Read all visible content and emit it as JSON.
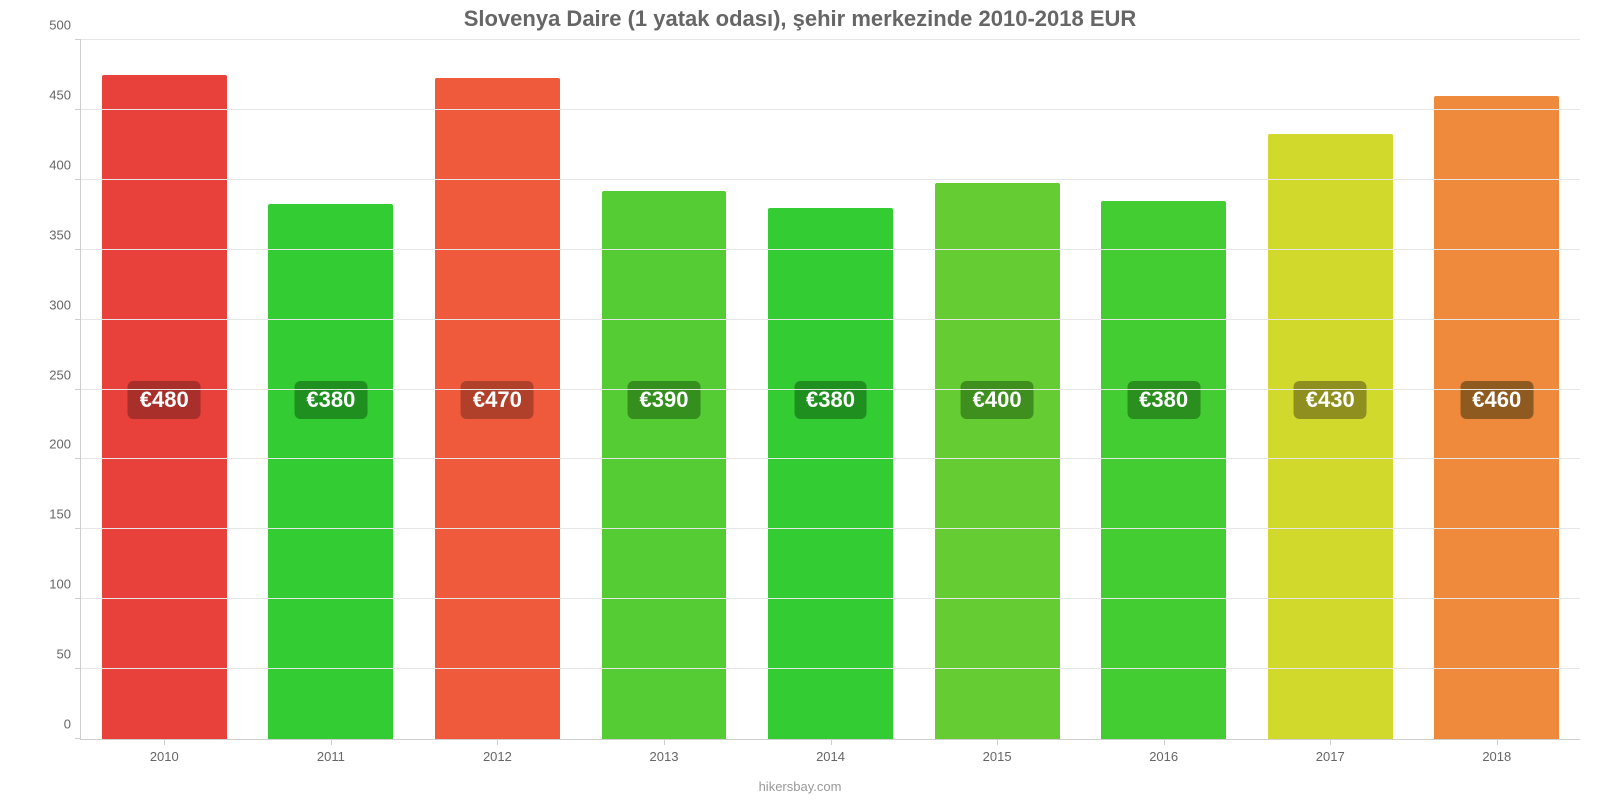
{
  "chart": {
    "type": "bar",
    "title": "Slovenya Daire (1 yatak odası), şehir merkezinde 2010-2018 EUR",
    "title_fontsize": 22,
    "title_color": "#666666",
    "credit": "hikersbay.com",
    "credit_fontsize": 13,
    "credit_color": "#999999",
    "background_color": "#ffffff",
    "grid_color": "#e6e6e6",
    "axis_line_color": "#cfcfcf",
    "tick_label_color": "#666666",
    "tick_fontsize": 13,
    "ylim_min": 0,
    "ylim_max": 500,
    "ytick_step": 50,
    "yticks": [
      {
        "value": 0,
        "label": "0"
      },
      {
        "value": 50,
        "label": "50"
      },
      {
        "value": 100,
        "label": "100"
      },
      {
        "value": 150,
        "label": "150"
      },
      {
        "value": 200,
        "label": "200"
      },
      {
        "value": 250,
        "label": "250"
      },
      {
        "value": 300,
        "label": "300"
      },
      {
        "value": 350,
        "label": "350"
      },
      {
        "value": 400,
        "label": "400"
      },
      {
        "value": 450,
        "label": "450"
      },
      {
        "value": 500,
        "label": "500"
      }
    ],
    "bar_width": 0.75,
    "value_label_fontsize": 22,
    "value_label_text_color": "#ffffff",
    "value_label_y_value": 215,
    "categories": [
      {
        "year": "2010",
        "value": 475,
        "label": "€480",
        "bar_color": "#e8403a",
        "label_bg": "#a92f2b"
      },
      {
        "year": "2011",
        "value": 383,
        "label": "€380",
        "bar_color": "#33cc33",
        "label_bg": "#1f8f1f"
      },
      {
        "year": "2012",
        "value": 473,
        "label": "€470",
        "bar_color": "#ef5a3c",
        "label_bg": "#b1402a"
      },
      {
        "year": "2013",
        "value": 392,
        "label": "€390",
        "bar_color": "#55cc33",
        "label_bg": "#358f1f"
      },
      {
        "year": "2014",
        "value": 380,
        "label": "€380",
        "bar_color": "#33cc33",
        "label_bg": "#1f8f1f"
      },
      {
        "year": "2015",
        "value": 398,
        "label": "€400",
        "bar_color": "#66cc33",
        "label_bg": "#3f8f1f"
      },
      {
        "year": "2016",
        "value": 385,
        "label": "€380",
        "bar_color": "#44cc33",
        "label_bg": "#2a8f1f"
      },
      {
        "year": "2017",
        "value": 433,
        "label": "€430",
        "bar_color": "#d2d92d",
        "label_bg": "#8f8f1f"
      },
      {
        "year": "2018",
        "value": 460,
        "label": "€460",
        "bar_color": "#ef8a3c",
        "label_bg": "#8f5a1f"
      }
    ]
  }
}
